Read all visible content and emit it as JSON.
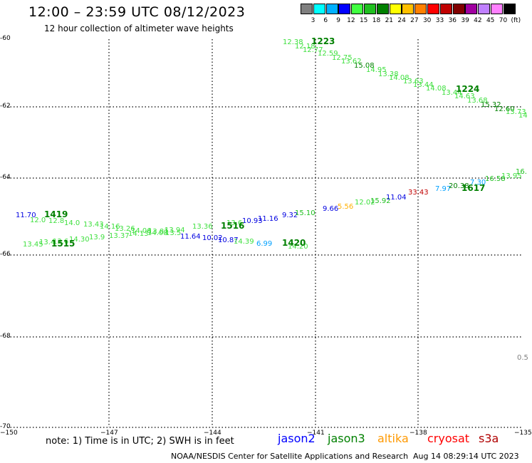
{
  "header": {
    "title": "12:00 – 23:59 UTC 08/12/2023",
    "subtitle": "12 hour collection of altimeter wave heights"
  },
  "colorbar": {
    "colors": [
      "#7f7f7f",
      "#00ffff",
      "#00b0ff",
      "#0000ff",
      "#40ff40",
      "#20c020",
      "#008000",
      "#ffff00",
      "#ffc000",
      "#ff8000",
      "#ff0000",
      "#c00000",
      "#800000",
      "#a000a0",
      "#c080ff",
      "#ff80ff",
      "#000000"
    ],
    "labels": [
      "3",
      "6",
      "9",
      "12",
      "15",
      "18",
      "21",
      "24",
      "27",
      "30",
      "33",
      "36",
      "39",
      "42",
      "45",
      "70",
      "(ft)"
    ]
  },
  "axes": {
    "x_ticks": [
      "−150",
      "−147",
      "−144",
      "−141",
      "−138",
      "−135"
    ],
    "y_ticks": [
      "-60",
      "-62",
      "-64",
      "-66",
      "-68",
      "-70"
    ]
  },
  "passes": [
    {
      "time": "1223",
      "color": "#008000"
    },
    {
      "time": "1224",
      "color": "#008000"
    },
    {
      "time": "1419",
      "color": "#008000"
    },
    {
      "time": "1515",
      "color": "#008000"
    },
    {
      "time": "1516",
      "color": "#008000"
    },
    {
      "time": "1420",
      "color": "#008000"
    },
    {
      "time": "1617",
      "color": "#008000"
    }
  ],
  "observations": [
    {
      "v": "12.38",
      "c": "#40e040"
    },
    {
      "v": "12.18",
      "c": "#40e040"
    },
    {
      "v": "12.77",
      "c": "#40e040"
    },
    {
      "v": "12.59",
      "c": "#40e040"
    },
    {
      "v": "12.75",
      "c": "#40e040"
    },
    {
      "v": "13.62",
      "c": "#40e040"
    },
    {
      "v": "15.08",
      "c": "#008000"
    },
    {
      "v": "14.95",
      "c": "#40e040"
    },
    {
      "v": "13.38",
      "c": "#40e040"
    },
    {
      "v": "14.08",
      "c": "#40e040"
    },
    {
      "v": "13.63",
      "c": "#40e040"
    },
    {
      "v": "13.44",
      "c": "#40e040"
    },
    {
      "v": "14.08",
      "c": "#40e040"
    },
    {
      "v": "13.44",
      "c": "#40e040"
    },
    {
      "v": "14.63",
      "c": "#40e040"
    },
    {
      "v": "13.68",
      "c": "#40e040"
    },
    {
      "v": "15.32",
      "c": "#008000"
    },
    {
      "v": "12.60",
      "c": "#008000"
    },
    {
      "v": "13.73",
      "c": "#40e040"
    },
    {
      "v": "14",
      "c": "#40e040"
    },
    {
      "v": "11.70",
      "c": "#0000e0"
    },
    {
      "v": "12.0",
      "c": "#40e040"
    },
    {
      "v": "12.8",
      "c": "#40e040"
    },
    {
      "v": "14.0",
      "c": "#40e040"
    },
    {
      "v": "13.43",
      "c": "#40e040"
    },
    {
      "v": "14.16",
      "c": "#40e040"
    },
    {
      "v": "13.26",
      "c": "#40e040"
    },
    {
      "v": "14.06",
      "c": "#40e040"
    },
    {
      "v": "13.81",
      "c": "#40e040"
    },
    {
      "v": "13.94",
      "c": "#40e040"
    },
    {
      "v": "13.36",
      "c": "#40e040"
    },
    {
      "v": "13.6",
      "c": "#40e040"
    },
    {
      "v": "10.93",
      "c": "#0000e0"
    },
    {
      "v": "11.16",
      "c": "#0000e0"
    },
    {
      "v": "9.32",
      "c": "#0000e0"
    },
    {
      "v": "15.10",
      "c": "#20c020"
    },
    {
      "v": "9.66",
      "c": "#0000e0"
    },
    {
      "v": "5.56",
      "c": "#ffb000"
    },
    {
      "v": "12.02",
      "c": "#40e040"
    },
    {
      "v": "15.92",
      "c": "#20c020"
    },
    {
      "v": "11.04",
      "c": "#0000e0"
    },
    {
      "v": "33.43",
      "c": "#c00000"
    },
    {
      "v": "7.97",
      "c": "#00a0ff"
    },
    {
      "v": "20.38",
      "c": "#008000"
    },
    {
      "v": "7.30",
      "c": "#00a0ff"
    },
    {
      "v": "16.58",
      "c": "#20c020"
    },
    {
      "v": "13.95",
      "c": "#40e040"
    },
    {
      "v": "16.",
      "c": "#20c020"
    },
    {
      "v": "13.45",
      "c": "#40e040"
    },
    {
      "v": "13.4",
      "c": "#40e040"
    },
    {
      "v": "13.6",
      "c": "#40e040"
    },
    {
      "v": "14.30",
      "c": "#40e040"
    },
    {
      "v": "13.9",
      "c": "#40e040"
    },
    {
      "v": "13.37",
      "c": "#40e040"
    },
    {
      "v": "14.13",
      "c": "#40e040"
    },
    {
      "v": "14.08",
      "c": "#40e040"
    },
    {
      "v": "13.5",
      "c": "#40e040"
    },
    {
      "v": "11.64",
      "c": "#0000e0"
    },
    {
      "v": "10.02",
      "c": "#0000e0"
    },
    {
      "v": "10.87",
      "c": "#0000e0"
    },
    {
      "v": "14.39",
      "c": "#40e040"
    },
    {
      "v": "6.99",
      "c": "#00a0ff"
    },
    {
      "v": "14.20",
      "c": "#40e040"
    },
    {
      "v": "0.5",
      "c": "#808080"
    }
  ],
  "footer": {
    "note": "note:  1) Time is in UTC; 2) SWH is in feet",
    "satellites": [
      {
        "name": "jason2",
        "color": "#0000ff"
      },
      {
        "name": "jason3",
        "color": "#008000"
      },
      {
        "name": "altika",
        "color": "#ff9900"
      },
      {
        "name": "cryosat",
        "color": "#ff0000"
      },
      {
        "name": "s3a",
        "color": "#b00000"
      }
    ],
    "credit": "NOAA/NESDIS Center for Satellite Applications and Research",
    "timestamp": "Aug 14 08:29:14 UTC 2023"
  }
}
